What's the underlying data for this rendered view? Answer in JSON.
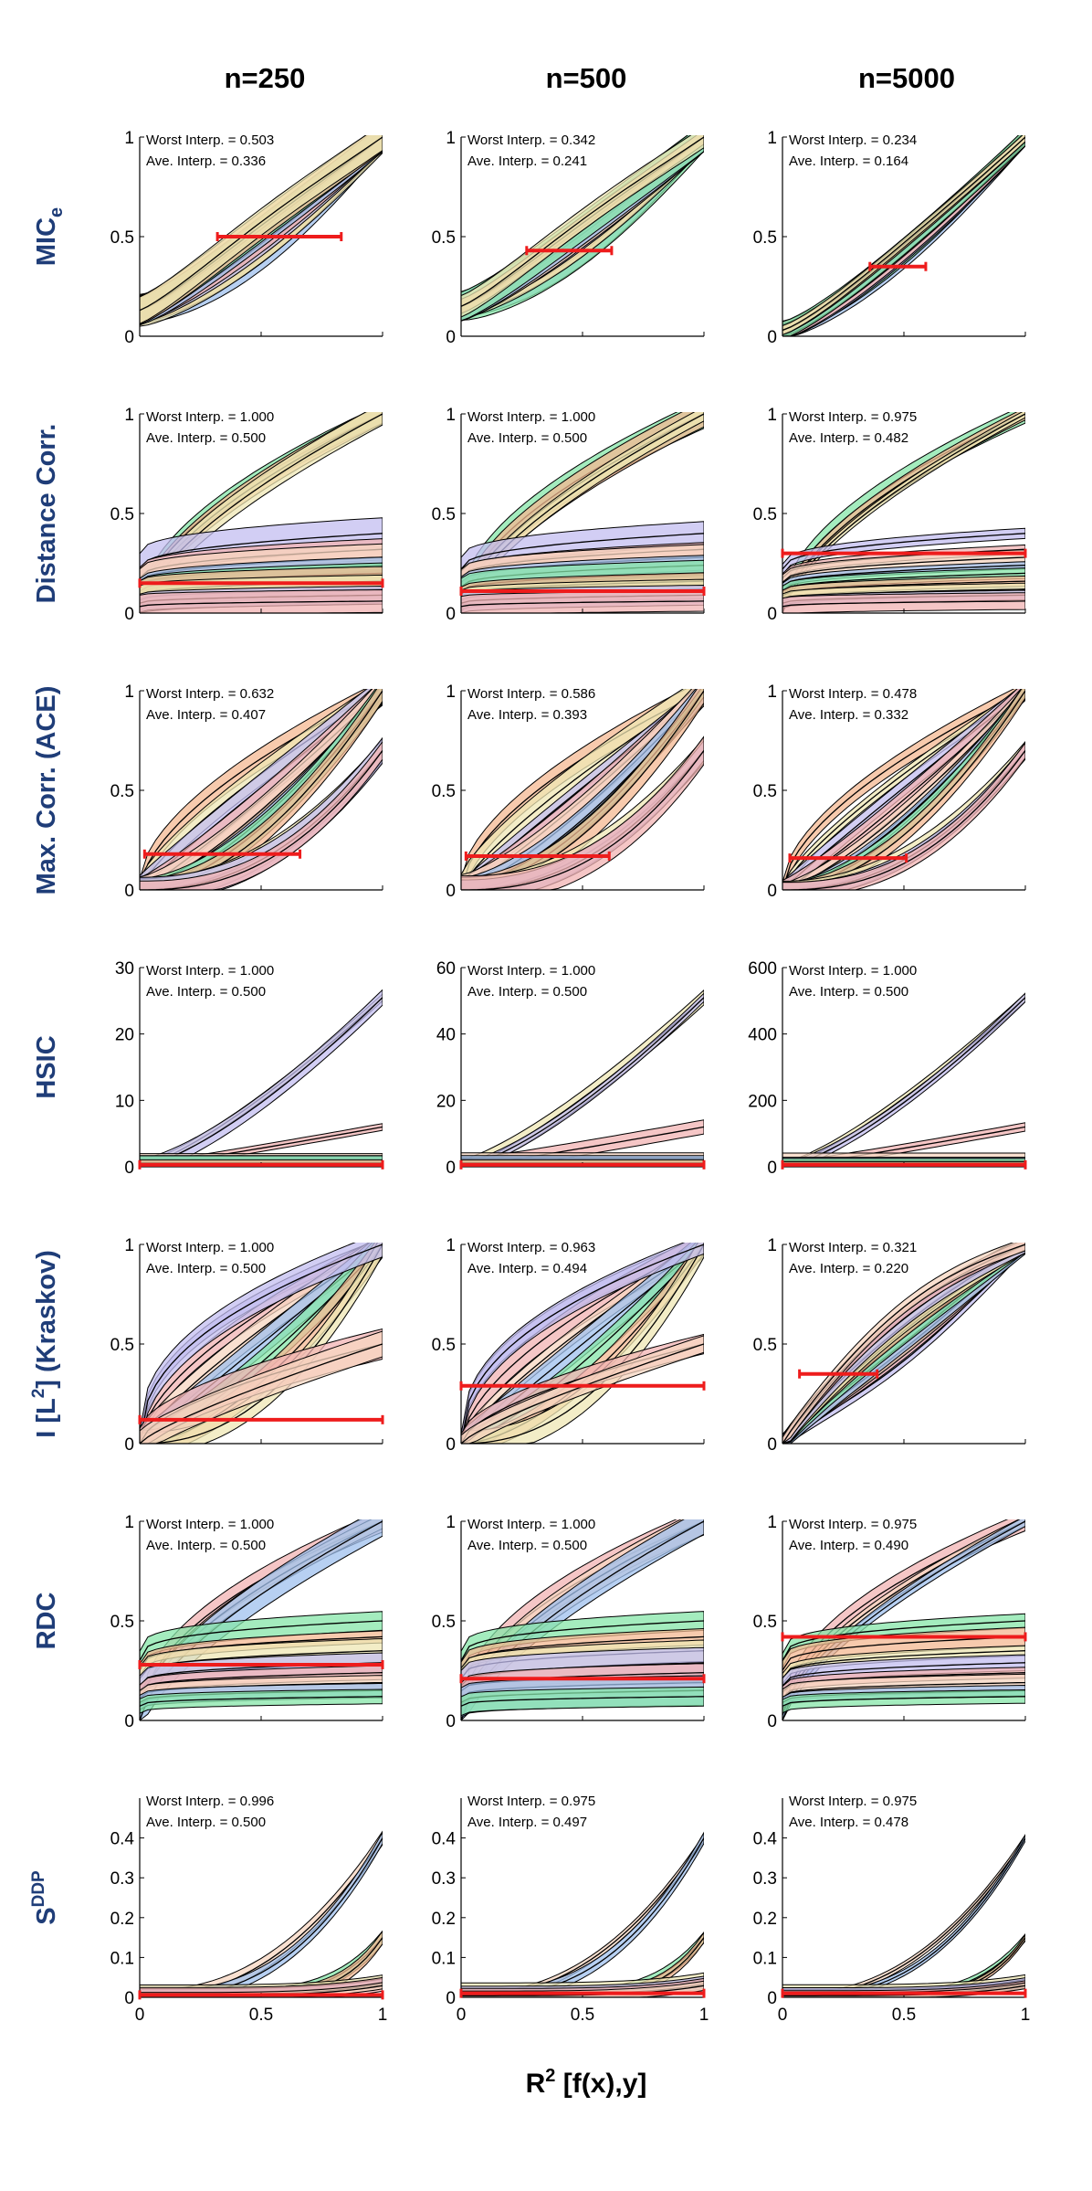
{
  "figure": {
    "column_titles": [
      "n=250",
      "n=500",
      "n=5000"
    ],
    "row_titles": [
      {
        "main": "MIC",
        "sub": "e"
      },
      {
        "main": "Distance Corr.",
        "sub": ""
      },
      {
        "main": "Max. Corr. (ACE)",
        "sub": ""
      },
      {
        "main": "HSIC",
        "sub": ""
      },
      {
        "main": "I [L",
        "sup": "2",
        "tail": "] (Kraskov)"
      },
      {
        "main": "RDC",
        "sub": ""
      },
      {
        "main": "S",
        "sup": "DDP"
      }
    ],
    "xlabel": {
      "main": "R",
      "sup": "2",
      "tail": " [f(x),y]"
    },
    "x_ticks": [
      "0",
      "0.5",
      "1"
    ],
    "band_colors": [
      "#9fc0ee",
      "#86e6a8",
      "#f4b892",
      "#efe7b4",
      "#c3bdf0",
      "#f2b3b3",
      "#f7d6c0"
    ],
    "red_color": "#ee1c1c"
  },
  "chart_data": [
    {
      "type": "band",
      "row": 0,
      "col": 0,
      "worst": "Worst Interp. = 0.503",
      "ave": "Ave.   Interp. = 0.336",
      "ylim": [
        0,
        1
      ],
      "yticks": [
        "0",
        "0.5",
        "1"
      ],
      "red": {
        "y": 0.5,
        "x0": 0.32,
        "x1": 0.83
      }
    },
    {
      "type": "band",
      "row": 0,
      "col": 1,
      "worst": "Worst Interp. = 0.342",
      "ave": "Ave.   Interp. = 0.241",
      "ylim": [
        0,
        1
      ],
      "yticks": [
        "0",
        "0.5",
        "1"
      ],
      "red": {
        "y": 0.43,
        "x0": 0.27,
        "x1": 0.62
      }
    },
    {
      "type": "band",
      "row": 0,
      "col": 2,
      "worst": "Worst Interp. = 0.234",
      "ave": "Ave.   Interp. = 0.164",
      "ylim": [
        0,
        1
      ],
      "yticks": [
        "0",
        "0.5",
        "1"
      ],
      "red": {
        "y": 0.35,
        "x0": 0.36,
        "x1": 0.59
      }
    },
    {
      "type": "band",
      "row": 1,
      "col": 0,
      "worst": "Worst Interp. = 1.000",
      "ave": "Ave.   Interp. = 0.500",
      "ylim": [
        0,
        1
      ],
      "yticks": [
        "0",
        "0.5",
        "1"
      ],
      "red": {
        "y": 0.15,
        "x0": 0,
        "x1": 1
      }
    },
    {
      "type": "band",
      "row": 1,
      "col": 1,
      "worst": "Worst Interp. = 1.000",
      "ave": "Ave.   Interp. = 0.500",
      "ylim": [
        0,
        1
      ],
      "yticks": [
        "0",
        "0.5",
        "1"
      ],
      "red": {
        "y": 0.11,
        "x0": 0,
        "x1": 1
      }
    },
    {
      "type": "band",
      "row": 1,
      "col": 2,
      "worst": "Worst Interp. = 0.975",
      "ave": "Ave.   Interp. = 0.482",
      "ylim": [
        0,
        1
      ],
      "yticks": [
        "0",
        "0.5",
        "1"
      ],
      "red": {
        "y": 0.3,
        "x0": 0,
        "x1": 1
      }
    },
    {
      "type": "band",
      "row": 2,
      "col": 0,
      "worst": "Worst Interp. = 0.632",
      "ave": "Ave.   Interp. = 0.407",
      "ylim": [
        0,
        1
      ],
      "yticks": [
        "0",
        "0.5",
        "1"
      ],
      "red": {
        "y": 0.18,
        "x0": 0.02,
        "x1": 0.66
      }
    },
    {
      "type": "band",
      "row": 2,
      "col": 1,
      "worst": "Worst Interp. = 0.586",
      "ave": "Ave.   Interp. = 0.393",
      "ylim": [
        0,
        1
      ],
      "yticks": [
        "0",
        "0.5",
        "1"
      ],
      "red": {
        "y": 0.17,
        "x0": 0.02,
        "x1": 0.61
      }
    },
    {
      "type": "band",
      "row": 2,
      "col": 2,
      "worst": "Worst Interp. = 0.478",
      "ave": "Ave.   Interp. = 0.332",
      "ylim": [
        0,
        1
      ],
      "yticks": [
        "0",
        "0.5",
        "1"
      ],
      "red": {
        "y": 0.16,
        "x0": 0.03,
        "x1": 0.51
      }
    },
    {
      "type": "band",
      "row": 3,
      "col": 0,
      "worst": "Worst Interp. = 1.000",
      "ave": "Ave.   Interp. = 0.500",
      "ylim": [
        0,
        30
      ],
      "yticks": [
        "0",
        "10",
        "20",
        "30"
      ],
      "red": {
        "y": 0.3,
        "x0": 0,
        "x1": 1
      }
    },
    {
      "type": "band",
      "row": 3,
      "col": 1,
      "worst": "Worst Interp. = 1.000",
      "ave": "Ave.   Interp. = 0.500",
      "ylim": [
        0,
        60
      ],
      "yticks": [
        "0",
        "20",
        "40",
        "60"
      ],
      "red": {
        "y": 0.6,
        "x0": 0,
        "x1": 1
      }
    },
    {
      "type": "band",
      "row": 3,
      "col": 2,
      "worst": "Worst Interp. = 1.000",
      "ave": "Ave.   Interp. = 0.500",
      "ylim": [
        0,
        600
      ],
      "yticks": [
        "0",
        "200",
        "400",
        "600"
      ],
      "red": {
        "y": 6,
        "x0": 0,
        "x1": 1
      }
    },
    {
      "type": "band",
      "row": 4,
      "col": 0,
      "worst": "Worst Interp. = 1.000",
      "ave": "Ave.   Interp. = 0.500",
      "ylim": [
        0,
        1
      ],
      "yticks": [
        "0",
        "0.5",
        "1"
      ],
      "red": {
        "y": 0.12,
        "x0": 0,
        "x1": 1
      }
    },
    {
      "type": "band",
      "row": 4,
      "col": 1,
      "worst": "Worst Interp. = 0.963",
      "ave": "Ave.   Interp. = 0.494",
      "ylim": [
        0,
        1
      ],
      "yticks": [
        "0",
        "0.5",
        "1"
      ],
      "red": {
        "y": 0.29,
        "x0": 0,
        "x1": 1
      }
    },
    {
      "type": "band",
      "row": 4,
      "col": 2,
      "worst": "Worst Interp. = 0.321",
      "ave": "Ave.   Interp. = 0.220",
      "ylim": [
        0,
        1
      ],
      "yticks": [
        "0",
        "0.5",
        "1"
      ],
      "red": {
        "y": 0.35,
        "x0": 0.07,
        "x1": 0.39
      }
    },
    {
      "type": "band",
      "row": 5,
      "col": 0,
      "worst": "Worst Interp. = 1.000",
      "ave": "Ave.   Interp. = 0.500",
      "ylim": [
        0,
        1
      ],
      "yticks": [
        "0",
        "0.5",
        "1"
      ],
      "red": {
        "y": 0.28,
        "x0": 0,
        "x1": 1
      }
    },
    {
      "type": "band",
      "row": 5,
      "col": 1,
      "worst": "Worst Interp. = 1.000",
      "ave": "Ave.   Interp. = 0.500",
      "ylim": [
        0,
        1
      ],
      "yticks": [
        "0",
        "0.5",
        "1"
      ],
      "red": {
        "y": 0.21,
        "x0": 0,
        "x1": 1
      }
    },
    {
      "type": "band",
      "row": 5,
      "col": 2,
      "worst": "Worst Interp. = 0.975",
      "ave": "Ave.   Interp. = 0.490",
      "ylim": [
        0,
        1
      ],
      "yticks": [
        "0",
        "0.5",
        "1"
      ],
      "red": {
        "y": 0.42,
        "x0": 0,
        "x1": 1
      }
    },
    {
      "type": "band",
      "row": 6,
      "col": 0,
      "worst": "Worst Interp. = 0.996",
      "ave": "Ave.   Interp. = 0.500",
      "ylim": [
        0,
        0.5
      ],
      "yticks": [
        "0",
        "0.1",
        "0.2",
        "0.3",
        "0.4"
      ],
      "red": {
        "y": 0.006,
        "x0": 0,
        "x1": 1
      }
    },
    {
      "type": "band",
      "row": 6,
      "col": 1,
      "worst": "Worst Interp. = 0.975",
      "ave": "Ave.   Interp. = 0.497",
      "ylim": [
        0,
        0.5
      ],
      "yticks": [
        "0",
        "0.1",
        "0.2",
        "0.3",
        "0.4"
      ],
      "red": {
        "y": 0.01,
        "x0": 0,
        "x1": 1
      }
    },
    {
      "type": "band",
      "row": 6,
      "col": 2,
      "worst": "Worst Interp. = 0.975",
      "ave": "Ave.   Interp. = 0.478",
      "ylim": [
        0,
        0.5
      ],
      "yticks": [
        "0",
        "0.1",
        "0.2",
        "0.3",
        "0.4"
      ],
      "red": {
        "y": 0.01,
        "x0": 0,
        "x1": 1
      }
    }
  ]
}
